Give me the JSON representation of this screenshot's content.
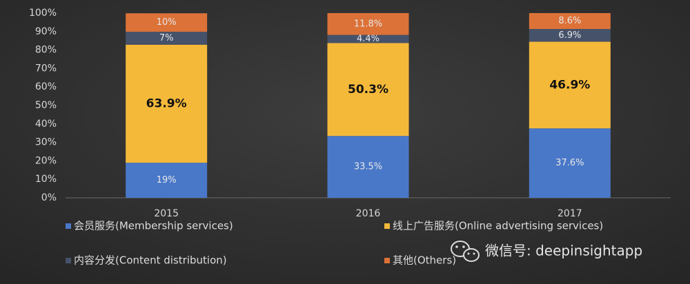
{
  "chart_data": {
    "type": "stacked_bar",
    "categories": [
      "2015",
      "2016",
      "2017"
    ],
    "series": [
      {
        "name": "会员服务(Membership services)",
        "color": "#4a78c8",
        "values": [
          19,
          33.5,
          37.6
        ],
        "value_labels": [
          "19%",
          "33.5%",
          "37.6%"
        ]
      },
      {
        "name": "线上广告服务(Online advertising services)",
        "color": "#f5b93a",
        "values": [
          63.9,
          50.3,
          46.9
        ],
        "value_labels": [
          "63.9%",
          "50.3%",
          "46.9%"
        ]
      },
      {
        "name": "内容分发(Content distribution)",
        "color": "#46526a",
        "values": [
          7,
          4.4,
          6.9
        ],
        "value_labels": [
          "7%",
          "4.4%",
          "6.9%"
        ]
      },
      {
        "name": "其他(Others)",
        "color": "#dc7238",
        "values": [
          10,
          11.8,
          8.6
        ],
        "value_labels": [
          "10%",
          "11.8%",
          "8.6%"
        ]
      }
    ],
    "ylim": [
      0,
      100
    ],
    "yticks": [
      {
        "value": 0,
        "label": "0%"
      },
      {
        "value": 10,
        "label": "10%"
      },
      {
        "value": 20,
        "label": "20%"
      },
      {
        "value": 30,
        "label": "30%"
      },
      {
        "value": 40,
        "label": "40%"
      },
      {
        "value": 50,
        "label": "50%"
      },
      {
        "value": 60,
        "label": "60%"
      },
      {
        "value": 70,
        "label": "70%"
      },
      {
        "value": 80,
        "label": "80%"
      },
      {
        "value": 90,
        "label": "90%"
      },
      {
        "value": 100,
        "label": "100%"
      }
    ],
    "grid": false,
    "watermark": "微信号: deepinsightapp"
  }
}
